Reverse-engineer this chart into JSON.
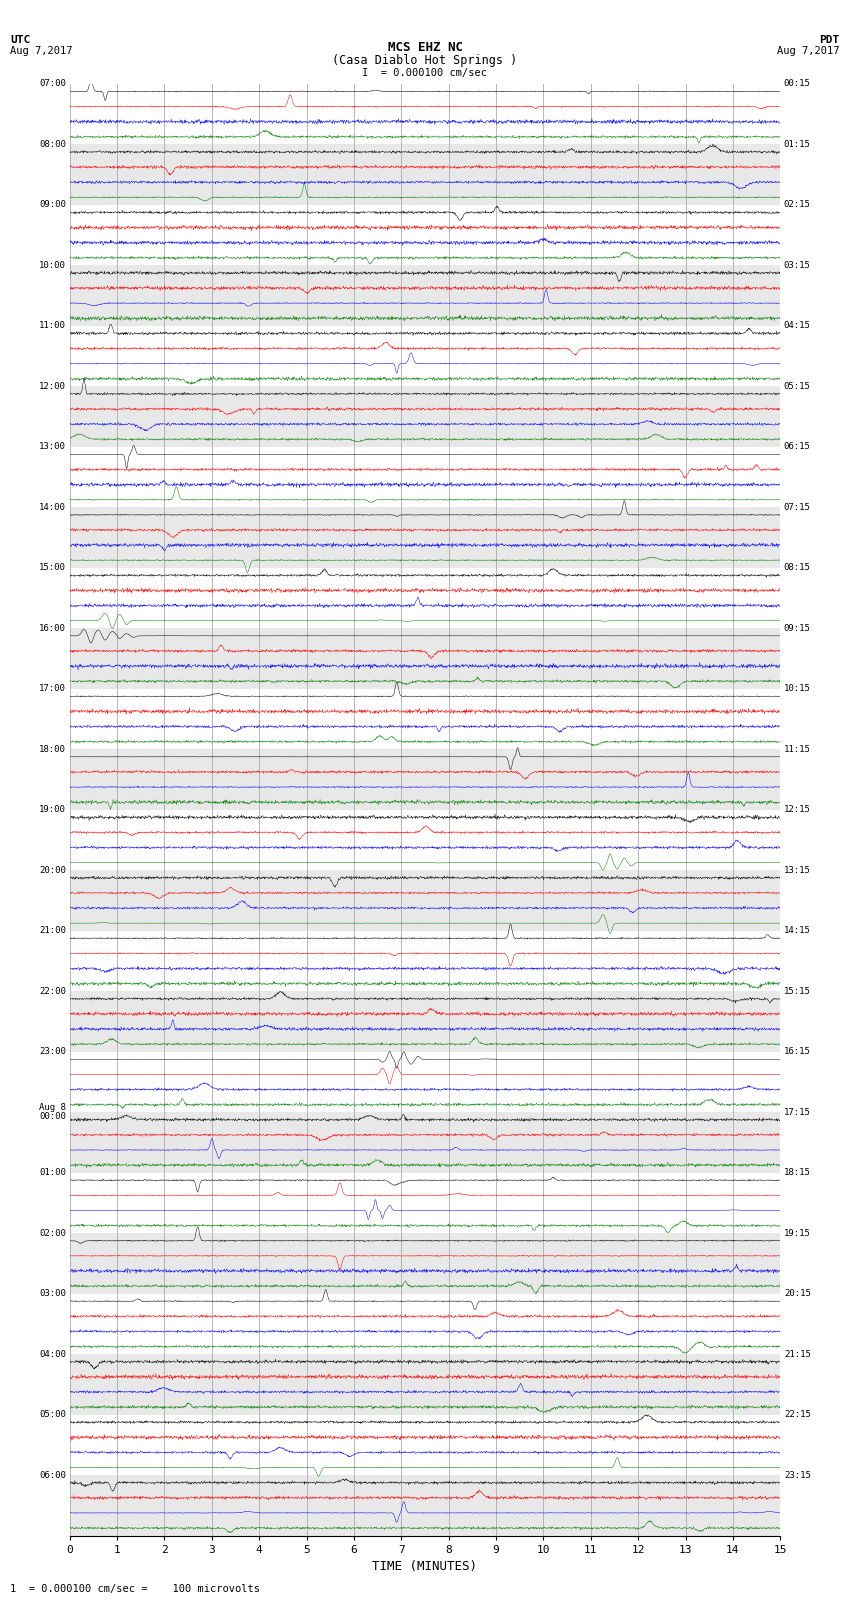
{
  "title_line1": "MCS EHZ NC",
  "title_line2": "(Casa Diablo Hot Springs )",
  "scale_label": "= 0.000100 cm/sec",
  "utc_label": "UTC\nAug 7,2017",
  "pdt_label": "PDT\nAug 7,2017",
  "footer_label": "1  = 0.000100 cm/sec =    100 microvolts",
  "xlabel": "TIME (MINUTES)",
  "left_times": [
    "07:00",
    "08:00",
    "09:00",
    "10:00",
    "11:00",
    "12:00",
    "13:00",
    "14:00",
    "15:00",
    "16:00",
    "17:00",
    "18:00",
    "19:00",
    "20:00",
    "21:00",
    "22:00",
    "23:00",
    "Aug 8\n00:00",
    "01:00",
    "02:00",
    "03:00",
    "04:00",
    "05:00",
    "06:00"
  ],
  "right_times": [
    "00:15",
    "01:15",
    "02:15",
    "03:15",
    "04:15",
    "05:15",
    "06:15",
    "07:15",
    "08:15",
    "09:15",
    "10:15",
    "11:15",
    "12:15",
    "13:15",
    "14:15",
    "15:15",
    "16:15",
    "17:15",
    "18:15",
    "19:15",
    "20:15",
    "21:15",
    "22:15",
    "23:15"
  ],
  "n_rows": 96,
  "n_group": 4,
  "colors": [
    "black",
    "red",
    "blue",
    "green"
  ],
  "bg_color_even": "#ffffff",
  "bg_color_odd": "#e8e8e8",
  "grid_color": "#aaaaaa",
  "xlim": [
    0,
    15
  ],
  "xticks": [
    0,
    1,
    2,
    3,
    4,
    5,
    6,
    7,
    8,
    9,
    10,
    11,
    12,
    13,
    14,
    15
  ],
  "fig_width": 8.5,
  "fig_height": 16.13,
  "dpi": 100
}
